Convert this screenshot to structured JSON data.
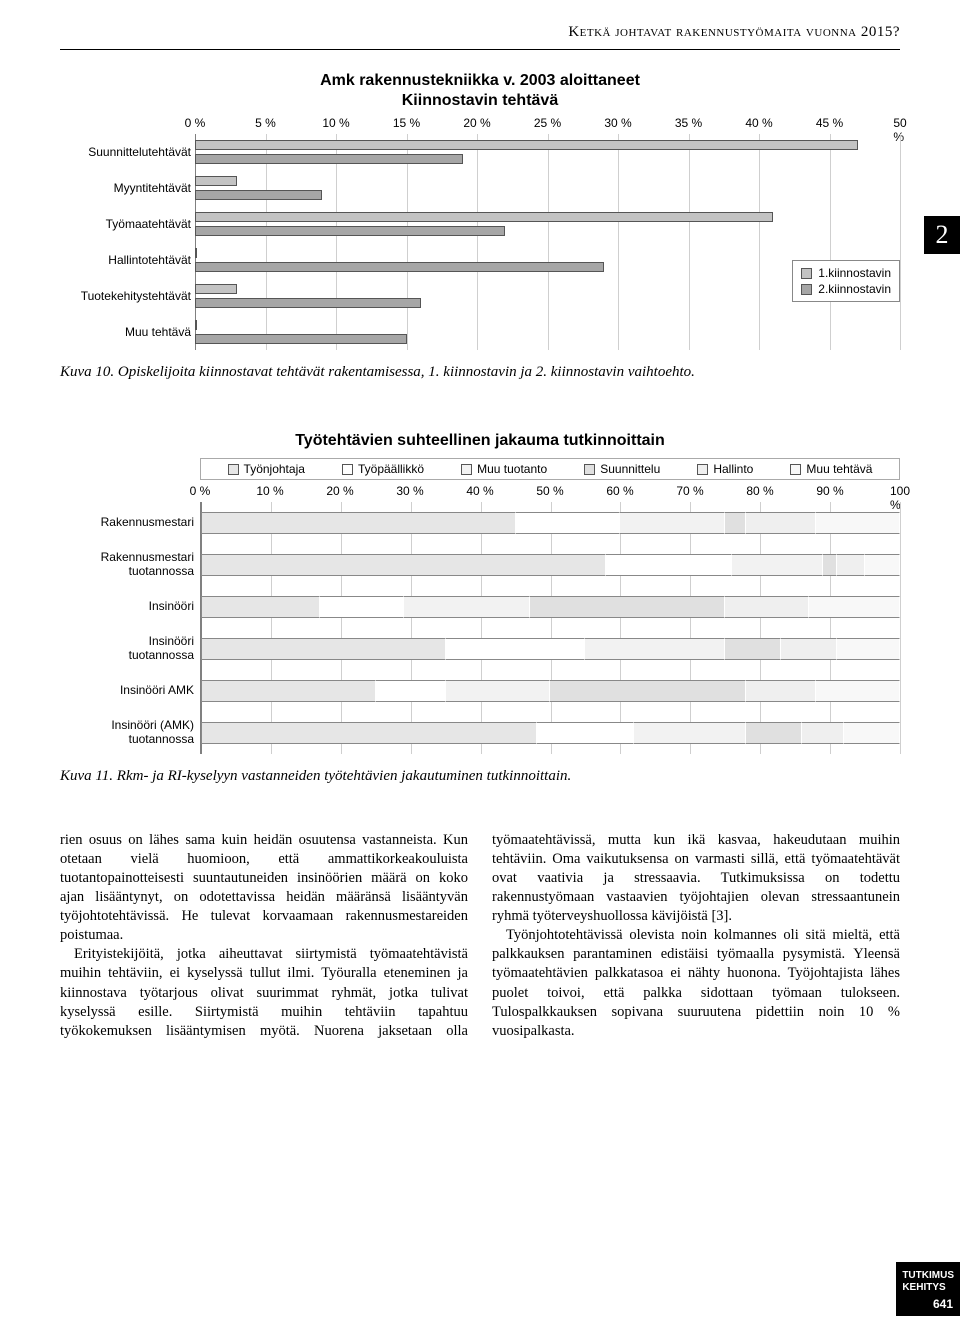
{
  "header": "Ketkä johtavat rakennustyömaita vuonna 2015?",
  "side_badge": "2",
  "chart1": {
    "type": "bar",
    "title_line1": "Amk rakennustekniikka v. 2003 aloittaneet",
    "title_line2": "Kiinnostavin tehtävä",
    "x_ticks": [
      "0 %",
      "5 %",
      "10 %",
      "15 %",
      "20 %",
      "25 %",
      "30 %",
      "35 %",
      "40 %",
      "45 %",
      "50 %"
    ],
    "x_max": 50,
    "categories": [
      "Suunnittelutehtävät",
      "Myyntitehtävät",
      "Työmaatehtävät",
      "Hallintotehtävät",
      "Tuotekehitystehtävät",
      "Muu tehtävä"
    ],
    "series": [
      {
        "name": "1.kiinnostavin",
        "color": "#c3c3c3",
        "values": [
          47,
          3,
          41,
          0,
          3,
          0
        ]
      },
      {
        "name": "2.kiinnostavin",
        "color": "#a6a6a6",
        "values": [
          19,
          9,
          22,
          29,
          16,
          15
        ]
      }
    ],
    "grid_color": "#cfcfcf"
  },
  "caption1": "Kuva 10. Opiskelijoita kiinnostavat tehtävät rakentamisessa, 1. kiinnostavin ja 2. kiinnostavin vaihtoehto.",
  "chart2": {
    "type": "stacked-bar",
    "title": "Työtehtävien suhteellinen jakauma tutkinnoittain",
    "x_ticks": [
      "0 %",
      "10 %",
      "20 %",
      "30 %",
      "40 %",
      "50 %",
      "60 %",
      "70 %",
      "80 %",
      "90 %",
      "100 %"
    ],
    "x_max": 100,
    "legend": [
      {
        "name": "Työnjohtaja",
        "color": "#e6e6e6"
      },
      {
        "name": "Työpäällikkö",
        "color": "#ffffff"
      },
      {
        "name": "Muu tuotanto",
        "color": "#f2f2f2"
      },
      {
        "name": "Suunnittelu",
        "color": "#e0e0e0"
      },
      {
        "name": "Hallinto",
        "color": "#efefef"
      },
      {
        "name": "Muu tehtävä",
        "color": "#f8f8f8"
      }
    ],
    "rows": [
      {
        "label": "Rakennusmestari",
        "segments": [
          45,
          15,
          15,
          3,
          10,
          12
        ]
      },
      {
        "label": "Rakennusmestari\ntuotannossa",
        "segments": [
          58,
          18,
          13,
          2,
          4,
          5
        ]
      },
      {
        "label": "Insinööri",
        "segments": [
          17,
          12,
          18,
          28,
          12,
          13
        ]
      },
      {
        "label": "Insinööri\ntuotannossa",
        "segments": [
          35,
          20,
          20,
          8,
          8,
          9
        ]
      },
      {
        "label": "Insinööri AMK",
        "segments": [
          25,
          10,
          15,
          28,
          10,
          12
        ]
      },
      {
        "label": "Insinööri (AMK)\ntuotannossa",
        "segments": [
          48,
          14,
          16,
          8,
          6,
          8
        ]
      }
    ],
    "grid_color": "#cfcfcf"
  },
  "caption2": "Kuva 11. Rkm- ja RI-kyselyyn vastanneiden työtehtävien jakautuminen tutkinnoittain.",
  "body": {
    "p1": "rien osuus on lähes sama kuin heidän osuutensa vastanneista. Kun otetaan vielä huomioon, että ammattikorkeakouluista tuotantopainotteisesti suuntautuneiden insinöörien määrä on koko ajan lisääntynyt, on odotettavissa heidän määränsä lisääntyvän työjohtotehtävissä. He tulevat korvaamaan rakennusmestareiden poistumaa.",
    "p2": "Erityistekijöitä, jotka aiheuttavat siirtymistä työmaatehtävistä muihin tehtäviin, ei kyselyssä tullut ilmi. Työuralla eteneminen ja kiinnostava työtarjous olivat suurimmat ryhmät, jotka tulivat kyselyssä esille. Siirtymistä muihin tehtäviin tapahtuu työkokemuksen lisääntymisen myötä. Nuorena jaksetaan olla työmaatehtävissä, mutta kun ikä kasvaa, hakeudutaan muihin tehtäviin. Oma vaikutuksensa on varmasti sillä, että työmaatehtävät ovat vaativia ja stressaavia. Tutkimuksissa on todettu rakennustyömaan vastaavien työjohtajien olevan stressaantunein ryhmä työterveyshuollossa kävijöistä [3].",
    "p3": "Työnjohtotehtävissä olevista noin kolmannes oli sitä mieltä, että palkkauksen parantaminen edistäisi työmaalla pysymistä. Yleensä työmaatehtävien palkkatasoa ei nähty huonona. Työjohtajista lähes puolet toivoi, että palkka sidottaan työmaan tulokseen. Tulospalkkauksen sopivana suuruutena pidettiin noin 10 % vuosipalkasta."
  },
  "side_tab": {
    "line1": "TUTKIMUS",
    "line2": "KEHITYS",
    "page": "641"
  }
}
